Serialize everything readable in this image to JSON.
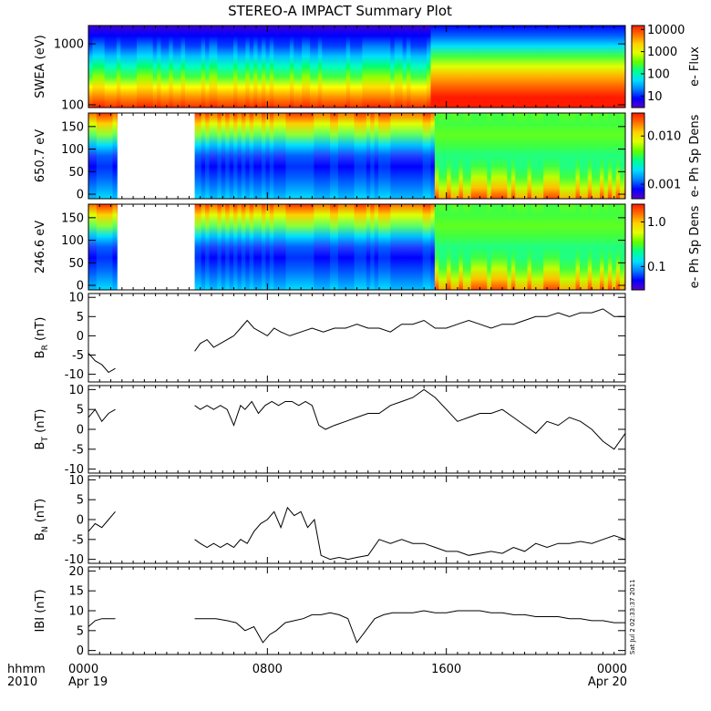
{
  "title": "STEREO-A IMPACT Summary Plot",
  "stamp": "Sat Jul  2 02:33:37 2011",
  "footer": {
    "hhmm": "hhmm",
    "year": "2010"
  },
  "time_axis": {
    "range_hours": [
      0,
      24
    ],
    "ticks": [
      {
        "hour": 0,
        "label": "0000",
        "sublabel": "Apr 19"
      },
      {
        "hour": 8,
        "label": "0800",
        "sublabel": ""
      },
      {
        "hour": 16,
        "label": "1600",
        "sublabel": ""
      },
      {
        "hour": 24,
        "label": "0000",
        "sublabel": "Apr 20"
      }
    ]
  },
  "colors": {
    "line": "#000000",
    "background": "#ffffff"
  },
  "chart_data": [
    {
      "type": "heatmap",
      "name": "swea",
      "ylabel": "SWEA (eV)",
      "ylim": [
        90,
        2000
      ],
      "yscale": "log",
      "yticks": [
        {
          "v": 100,
          "label": "100"
        },
        {
          "v": 1000,
          "label": "1000"
        }
      ],
      "colorbar": {
        "label": "e- Flux",
        "scale": "log",
        "range": [
          3,
          15000
        ],
        "ticks": [
          {
            "v": 10,
            "label": "10"
          },
          {
            "v": 100,
            "label": "100"
          },
          {
            "v": 1000,
            "label": "1000"
          },
          {
            "v": 10000,
            "label": "10000"
          }
        ]
      },
      "gaps": []
    },
    {
      "type": "heatmap",
      "name": "pad650",
      "ylabel": "650.7 eV",
      "ylim": [
        -10,
        180
      ],
      "yticks": [
        {
          "v": 0,
          "label": "0"
        },
        {
          "v": 50,
          "label": "50"
        },
        {
          "v": 100,
          "label": "100"
        },
        {
          "v": 150,
          "label": "150"
        }
      ],
      "colorbar": {
        "label": "e- Ph Sp Dens",
        "scale": "log",
        "range": [
          0.0005,
          0.03
        ],
        "ticks": [
          {
            "v": 0.001,
            "label": "0.001"
          },
          {
            "v": 0.01,
            "label": "0.010"
          }
        ]
      },
      "gaps": [
        [
          1.3,
          4.75
        ]
      ]
    },
    {
      "type": "heatmap",
      "name": "pad246",
      "ylabel": "246.6 eV",
      "ylim": [
        -10,
        180
      ],
      "yticks": [
        {
          "v": 0,
          "label": "0"
        },
        {
          "v": 50,
          "label": "50"
        },
        {
          "v": 100,
          "label": "100"
        },
        {
          "v": 150,
          "label": "150"
        }
      ],
      "colorbar": {
        "label": "e- Ph Sp Dens",
        "scale": "log",
        "range": [
          0.03,
          2.5
        ],
        "ticks": [
          {
            "v": 0.1,
            "label": "0.1"
          },
          {
            "v": 1.0,
            "label": "1.0"
          }
        ]
      },
      "gaps": [
        [
          1.3,
          4.75
        ]
      ]
    },
    {
      "type": "line",
      "name": "br",
      "ylabel": "B",
      "ylabel_sub": "R",
      "ylabel_unit": " (nT)",
      "ylim": [
        -12,
        11
      ],
      "yticks": [
        -10,
        -5,
        0,
        5,
        10
      ],
      "segments": [
        {
          "x": [
            0,
            0.3,
            0.6,
            0.9,
            1.2
          ],
          "y": [
            -4.5,
            -6.5,
            -7.5,
            -9.5,
            -8.5
          ]
        },
        {
          "x": [
            4.75,
            5.0,
            5.3,
            5.6,
            5.9,
            6.2,
            6.5,
            6.8,
            7.1,
            7.4,
            7.7,
            8.0,
            8.3,
            8.6,
            9.0,
            9.5,
            10,
            10.5,
            11,
            11.5,
            12,
            12.5,
            13,
            13.5,
            14,
            14.5,
            15,
            15.5,
            16,
            16.5,
            17,
            17.5,
            18,
            18.5,
            19,
            19.5,
            20,
            20.5,
            21,
            21.5,
            22,
            22.5,
            23,
            23.5,
            24
          ],
          "y": [
            -4,
            -2,
            -1,
            -3,
            -2,
            -1,
            0,
            2,
            4,
            2,
            1,
            0,
            2,
            1,
            0,
            1,
            2,
            1,
            2,
            2,
            3,
            2,
            2,
            1,
            3,
            3,
            4,
            2,
            2,
            3,
            4,
            3,
            2,
            3,
            3,
            4,
            5,
            5,
            6,
            5,
            6,
            6,
            7,
            5,
            5
          ]
        }
      ]
    },
    {
      "type": "line",
      "name": "bt",
      "ylabel": "B",
      "ylabel_sub": "T",
      "ylabel_unit": " (nT)",
      "ylim": [
        -11,
        11
      ],
      "yticks": [
        -10,
        -5,
        0,
        5,
        10
      ],
      "segments": [
        {
          "x": [
            0,
            0.3,
            0.6,
            0.9,
            1.2
          ],
          "y": [
            3,
            5,
            2,
            4,
            5
          ]
        },
        {
          "x": [
            4.75,
            5.0,
            5.3,
            5.6,
            5.9,
            6.2,
            6.5,
            6.8,
            7.0,
            7.3,
            7.6,
            7.9,
            8.2,
            8.5,
            8.8,
            9.1,
            9.4,
            9.7,
            10.0,
            10.3,
            10.6,
            11,
            11.5,
            12,
            12.5,
            13,
            13.5,
            14,
            14.5,
            15,
            15.5,
            16,
            16.5,
            17,
            17.5,
            18,
            18.5,
            19,
            19.5,
            20,
            20.5,
            21,
            21.5,
            22,
            22.5,
            23,
            23.5,
            24
          ],
          "y": [
            6,
            5,
            6,
            5,
            6,
            5,
            1,
            6,
            5,
            7,
            4,
            6,
            7,
            6,
            7,
            7,
            6,
            7,
            6,
            1,
            0,
            1,
            2,
            3,
            4,
            4,
            6,
            7,
            8,
            10,
            8,
            5,
            2,
            3,
            4,
            4,
            5,
            3,
            1,
            -1,
            2,
            1,
            3,
            2,
            0,
            -3,
            -5,
            -1
          ]
        }
      ]
    },
    {
      "type": "line",
      "name": "bn",
      "ylabel": "B",
      "ylabel_sub": "N",
      "ylabel_unit": " (nT)",
      "ylim": [
        -11,
        11
      ],
      "yticks": [
        -10,
        -5,
        0,
        5,
        10
      ],
      "segments": [
        {
          "x": [
            0,
            0.3,
            0.6,
            0.9,
            1.2
          ],
          "y": [
            -3,
            -1,
            -2,
            0,
            2
          ]
        },
        {
          "x": [
            4.75,
            5.0,
            5.3,
            5.6,
            5.9,
            6.2,
            6.5,
            6.8,
            7.1,
            7.4,
            7.7,
            8.0,
            8.3,
            8.6,
            8.9,
            9.2,
            9.5,
            9.8,
            10.1,
            10.4,
            10.8,
            11.2,
            11.6,
            12,
            12.5,
            13,
            13.5,
            14,
            14.5,
            15,
            15.5,
            16,
            16.5,
            17,
            17.5,
            18,
            18.5,
            19,
            19.5,
            20,
            20.5,
            21,
            21.5,
            22,
            22.5,
            23,
            23.5,
            24
          ],
          "y": [
            -5,
            -6,
            -7,
            -6,
            -7,
            -6,
            -7,
            -5,
            -6,
            -3,
            -1,
            0,
            2,
            -2,
            3,
            1,
            2,
            -2,
            0,
            -9,
            -10,
            -9.5,
            -10,
            -9.5,
            -9,
            -5,
            -6,
            -5,
            -6,
            -6,
            -7,
            -8,
            -8,
            -9,
            -8.5,
            -8,
            -8.5,
            -7,
            -8,
            -6,
            -7,
            -6,
            -6,
            -5.5,
            -6,
            -5,
            -4,
            -5
          ]
        }
      ]
    },
    {
      "type": "line",
      "name": "bmag",
      "ylabel": "IBI",
      "ylabel_sub": "",
      "ylabel_unit": " (nT)",
      "ylim": [
        -1,
        21
      ],
      "yticks": [
        0,
        5,
        10,
        15,
        20
      ],
      "segments": [
        {
          "x": [
            0,
            0.3,
            0.6,
            0.9,
            1.2
          ],
          "y": [
            6,
            7.5,
            8,
            8,
            8
          ]
        },
        {
          "x": [
            4.75,
            5.2,
            5.7,
            6.2,
            6.6,
            7.0,
            7.4,
            7.8,
            8.1,
            8.4,
            8.8,
            9.2,
            9.6,
            10.0,
            10.4,
            10.8,
            11.2,
            11.6,
            12.0,
            12.4,
            12.8,
            13.2,
            13.6,
            14,
            14.5,
            15,
            15.5,
            16,
            16.5,
            17,
            17.5,
            18,
            18.5,
            19,
            19.5,
            20,
            20.5,
            21,
            21.5,
            22,
            22.5,
            23,
            23.5,
            24
          ],
          "y": [
            8,
            8,
            8,
            7.5,
            7,
            5,
            6,
            2,
            4,
            5,
            7,
            7.5,
            8,
            9,
            9,
            9.5,
            9,
            8,
            2,
            5,
            8,
            9,
            9.5,
            9.5,
            9.5,
            10,
            9.5,
            9.5,
            10,
            10,
            10,
            9.5,
            9.5,
            9,
            9,
            8.5,
            8.5,
            8.5,
            8,
            8,
            7.5,
            7.5,
            7,
            7
          ]
        }
      ]
    }
  ]
}
